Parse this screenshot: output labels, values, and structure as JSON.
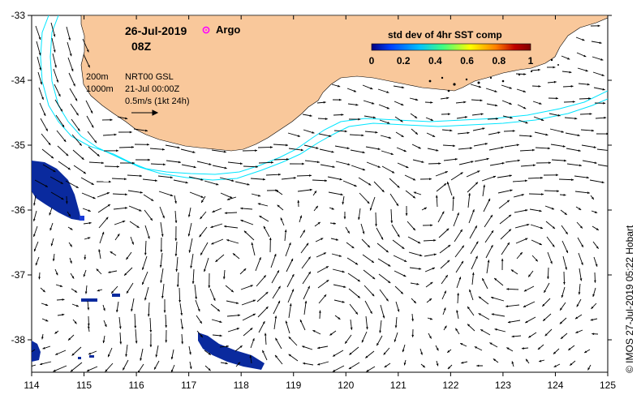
{
  "header": {
    "date": "26-Jul-2019",
    "hour": "08Z",
    "argo_label": "Argo",
    "argo_color": "#ff00ff"
  },
  "legend": {
    "title": "std dev of 4hr SST comp",
    "ticks": [
      "0",
      "0.2",
      "0.4",
      "0.6",
      "0.8",
      "1"
    ],
    "colors": [
      "#000080",
      "#0040ff",
      "#00c0ff",
      "#40ff80",
      "#ffff00",
      "#ff8000",
      "#c00000",
      "#800000"
    ]
  },
  "info": {
    "depth_200": "200m",
    "depth_1000": "1000m",
    "product": "NRT00 GSL",
    "product_date": "21-Jul 00:00Z",
    "scale_label": "0.5m/s (1kt 24h)"
  },
  "axes": {
    "x_ticks": [
      "114",
      "115",
      "116",
      "117",
      "118",
      "119",
      "120",
      "121",
      "122",
      "123",
      "124",
      "125"
    ],
    "y_ticks": [
      "-33",
      "-34",
      "-35",
      "-36",
      "-37",
      "-38"
    ],
    "xlim": [
      114,
      125
    ],
    "ylim": [
      -38.5,
      -33
    ]
  },
  "colors": {
    "land": "#f9c89b",
    "isobath": "#00e5ff",
    "sst_patch": "#0a2a9e"
  },
  "credit": "© IMOS 27-Jul-2019 05:22 Hobart"
}
